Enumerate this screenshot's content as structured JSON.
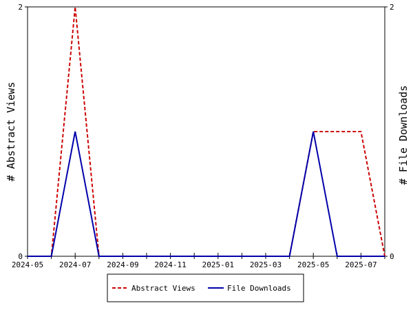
{
  "chart_data": {
    "type": "line",
    "x": [
      "2024-05",
      "2024-06",
      "2024-07",
      "2024-08",
      "2024-09",
      "2024-10",
      "2024-11",
      "2024-12",
      "2025-01",
      "2025-02",
      "2025-03",
      "2025-04",
      "2025-05",
      "2025-06",
      "2025-07",
      "2025-08"
    ],
    "x_tick_labels": [
      "2024-05",
      "2024-07",
      "2024-09",
      "2024-11",
      "2025-01",
      "2025-03",
      "2025-05",
      "2025-07"
    ],
    "series": [
      {
        "name": "Abstract Views",
        "axis": "left",
        "color": "#cc0000",
        "dash": "dashed",
        "values": [
          0,
          0,
          2,
          0,
          0,
          0,
          0,
          0,
          0,
          0,
          0,
          0,
          1,
          1,
          1,
          0
        ]
      },
      {
        "name": "File Downloads",
        "axis": "right",
        "color": "#0000aa",
        "dash": "solid",
        "values": [
          0,
          0,
          1,
          0,
          0,
          0,
          0,
          0,
          0,
          0,
          0,
          0,
          1,
          0,
          0,
          0
        ]
      }
    ],
    "ylabel_left": "# Abstract Views",
    "ylabel_right": "# File Downloads",
    "ylim_left": [
      0,
      2
    ],
    "ylim_right": [
      0,
      2
    ],
    "y_tick_labels_left": [
      "0",
      "2"
    ],
    "y_tick_labels_right": [
      "0",
      "2"
    ],
    "grid": false,
    "legend_position": "bottom-center"
  }
}
